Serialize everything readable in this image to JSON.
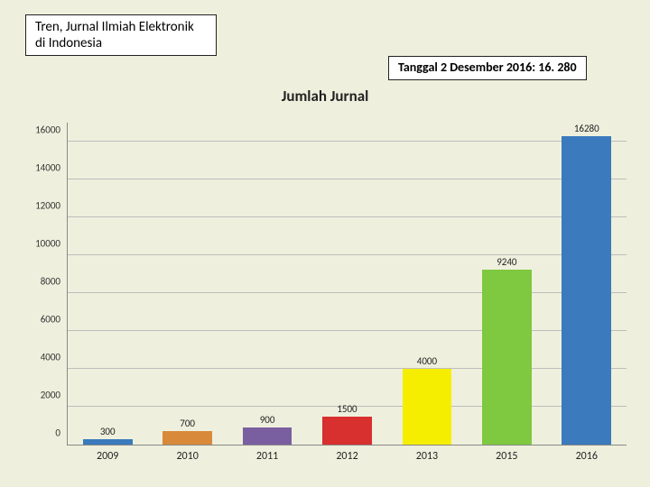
{
  "title_box": "Tren, Jurnal Ilmiah Elektronik di Indonesia",
  "date_box": "Tanggal  2 Desember 2016:  16. 280",
  "chart": {
    "type": "bar",
    "title": "Jumlah Jurnal",
    "title_fontsize": 17,
    "background_color": "#eef0dd",
    "grid_color": "#bdbdbd",
    "axis_color": "#888888",
    "label_fontsize": 12,
    "data_label_fontsize": 11,
    "ymin": 0,
    "ymax": 17000,
    "ytick_step": 2000,
    "bar_width": 0.62,
    "categories": [
      "2009",
      "2010",
      "2011",
      "2012",
      "2013",
      "2015",
      "2016"
    ],
    "values": [
      300,
      700,
      900,
      1500,
      4000,
      9240,
      16280
    ],
    "bar_colors": [
      "#3a7abd",
      "#d88a3a",
      "#7a5fa0",
      "#d82f2f",
      "#f6ee00",
      "#7ec93f",
      "#3a7abd"
    ]
  }
}
